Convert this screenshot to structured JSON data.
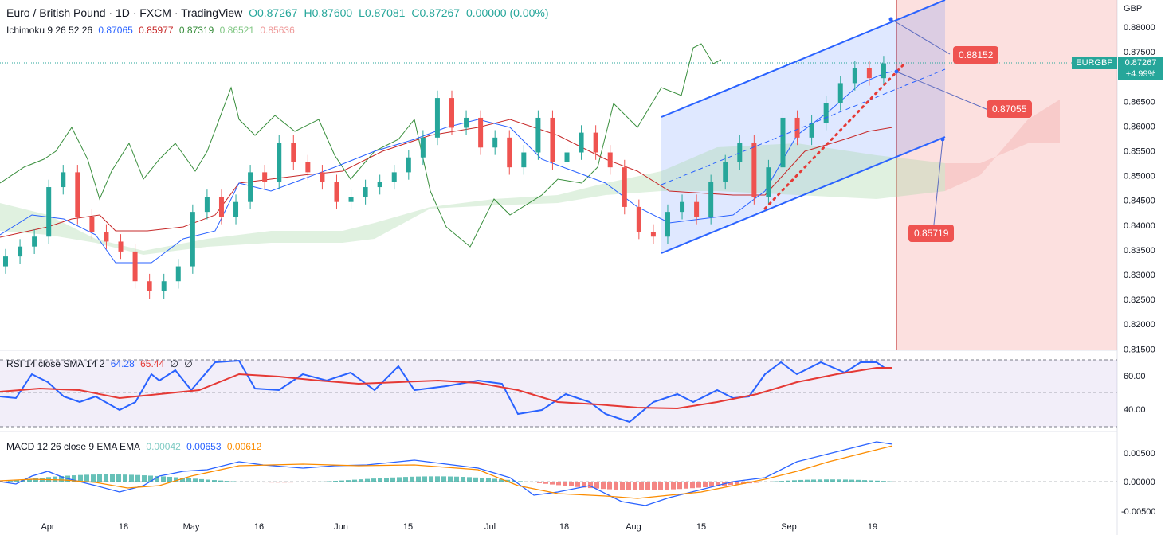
{
  "header": {
    "symbol_title": "Euro / British Pound · 1D · FXCM · TradingView",
    "open": "O0.87267",
    "high": "H0.87600",
    "low": "L0.87081",
    "close": "C0.87267",
    "change": "0.00000 (0.00%)"
  },
  "ichimoku": {
    "label": "Ichimoku 9 26 52 26",
    "v1": "0.87065",
    "v2": "0.85977",
    "v3": "0.87319",
    "v4": "0.86521",
    "v5": "0.85636"
  },
  "rsi": {
    "label": "RSI 14 close SMA 14 2",
    "v1": "64.28",
    "v2": "65.44",
    "v3": "∅",
    "v4": "∅"
  },
  "macd": {
    "label": "MACD 12 26 close 9 EMA EMA",
    "v1": "0.00042",
    "v2": "0.00653",
    "v3": "0.00612"
  },
  "price_axis": {
    "currency": "GBP",
    "ticks": [
      "0.88000",
      "0.87500",
      "0.87000",
      "0.86500",
      "0.86000",
      "0.85500",
      "0.85000",
      "0.84500",
      "0.84000",
      "0.83500",
      "0.83000",
      "0.82500",
      "0.82000",
      "0.81500"
    ]
  },
  "rsi_axis": {
    "ticks": [
      "60.00",
      "40.00"
    ]
  },
  "macd_axis": {
    "ticks": [
      "0.00500",
      "0.00000",
      "-0.00500"
    ]
  },
  "time_axis": [
    "Apr",
    "18",
    "May",
    "16",
    "Jun",
    "15",
    "Jul",
    "18",
    "Aug",
    "15",
    "Sep",
    "19"
  ],
  "last_price": {
    "symbol": "EURGBP",
    "price": "0.87267",
    "change": "+4.99%"
  },
  "annotations": {
    "upper": "0.88152",
    "middle": "0.87055",
    "lower": "0.85719"
  },
  "colors": {
    "up": "#26a69a",
    "down": "#ef5350",
    "channel": "#2962ff",
    "forecast": "#ef5350"
  },
  "chart_data": {
    "type": "candlestick",
    "title": "Euro / British Pound · 1D · FXCM · TradingView",
    "y_range": [
      0.815,
      0.882
    ],
    "candles_close": [
      0.834,
      0.836,
      0.838,
      0.848,
      0.851,
      0.842,
      0.839,
      0.837,
      0.835,
      0.829,
      0.827,
      0.829,
      0.832,
      0.843,
      0.846,
      0.842,
      0.845,
      0.851,
      0.849,
      0.857,
      0.853,
      0.851,
      0.849,
      0.845,
      0.846,
      0.848,
      0.849,
      0.851,
      0.854,
      0.858,
      0.866,
      0.86,
      0.862,
      0.856,
      0.858,
      0.852,
      0.855,
      0.862,
      0.853,
      0.855,
      0.859,
      0.855,
      0.852,
      0.844,
      0.839,
      0.838,
      0.843,
      0.845,
      0.842,
      0.849,
      0.853,
      0.857,
      0.846,
      0.852,
      0.862,
      0.858,
      0.861,
      0.865,
      0.869,
      0.872,
      0.87,
      0.873
    ]
  }
}
